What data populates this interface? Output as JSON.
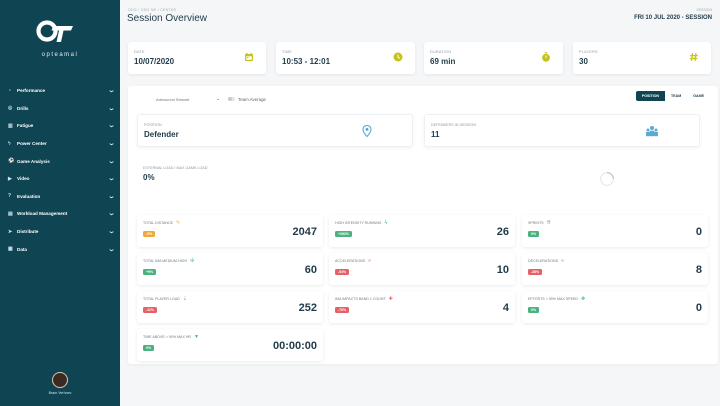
{
  "brand": {
    "logo_text": "opteamal"
  },
  "sidebar": {
    "items": [
      {
        "label": "Performance",
        "icon": "chart-icon",
        "glyph": "◔"
      },
      {
        "label": "Drills",
        "icon": "drills-icon",
        "glyph": "◎"
      },
      {
        "label": "Fatigue",
        "icon": "fatigue-icon",
        "glyph": "▥"
      },
      {
        "label": "Power Center",
        "icon": "power-icon",
        "glyph": "ϟ"
      },
      {
        "label": "Game Analysis",
        "icon": "football-icon",
        "glyph": "⚽"
      },
      {
        "label": "Video",
        "icon": "video-icon",
        "glyph": "▶"
      },
      {
        "label": "Evaluation",
        "icon": "question-icon",
        "glyph": "?"
      },
      {
        "label": "Workload Management",
        "icon": "workload-icon",
        "glyph": "▤"
      },
      {
        "label": "Distribute",
        "icon": "send-icon",
        "glyph": "➤"
      },
      {
        "label": "Data",
        "icon": "database-icon",
        "glyph": "▦"
      }
    ],
    "user": {
      "name": "Bram Verhoev"
    }
  },
  "header": {
    "breadcrumb": "ODG  /  ODG NE  /  CENTER",
    "title": "Session Overview",
    "session_label": "SESSION",
    "session_value": "FRI 10 JUL 2020 - SESSION"
  },
  "stats": [
    {
      "label": "DATE",
      "value": "10/07/2020",
      "icon": "calendar-icon"
    },
    {
      "label": "TIME",
      "value": "10:53 - 12:01",
      "icon": "clock-icon"
    },
    {
      "label": "DURATION",
      "value": "69 min",
      "icon": "stopwatch-icon"
    },
    {
      "label": "PLAYERS",
      "value": "30",
      "icon": "hash-icon"
    }
  ],
  "filters": {
    "athlete": "Adewunmi Stewart",
    "team_average": "Team Average",
    "tabs": [
      "POSITION",
      "TEAM",
      "GAME"
    ],
    "active_tab": "POSITION"
  },
  "position": {
    "label": "POSITION",
    "value": "Defender"
  },
  "defenders": {
    "label": "DEFENDERS IN SESSION",
    "value": "11"
  },
  "external_load": {
    "label": "EXTERNAL LOAD / MAX GAME LOAD",
    "value": "0%"
  },
  "colors": {
    "orange": "#f2a93b",
    "green": "#49b27e",
    "red": "#e85f66"
  },
  "metrics": [
    {
      "label": "TOTAL DISTANCE",
      "icon": "pencil-icon",
      "glyph": "✎",
      "icon_color": "#f2a93b",
      "badge": "-9%",
      "badge_color": "#f2a93b",
      "value": "2047"
    },
    {
      "label": "HIGH INTENSITY RUNNING",
      "icon": "bolt-icon",
      "glyph": "ϟ",
      "icon_color": "#49b27e",
      "badge": "+263%",
      "badge_color": "#49b27e",
      "value": "26"
    },
    {
      "label": "SPRINTS",
      "icon": "sprint-icon",
      "glyph": "⇈",
      "icon_color": "#49b27e",
      "badge": "0%",
      "badge_color": "#49b27e",
      "value": "0"
    },
    {
      "label": "TOTAL IMA MEDIUM-HIGH",
      "icon": "arrows-icon",
      "glyph": "✣",
      "icon_color": "#49b27e",
      "badge": "+9%",
      "badge_color": "#49b27e",
      "value": "60"
    },
    {
      "label": "ACCELERATIONS",
      "icon": "fast-forward-icon",
      "glyph": "»",
      "icon_color": "#e85f66",
      "badge": "-54%",
      "badge_color": "#e85f66",
      "value": "10"
    },
    {
      "label": "DECELERATIONS",
      "icon": "rewind-icon",
      "glyph": "«",
      "icon_color": "#e85f66",
      "badge": "-38%",
      "badge_color": "#e85f66",
      "value": "8"
    },
    {
      "label": "TOTAL PLAYER LOAD",
      "icon": "load-icon",
      "glyph": "⇣",
      "icon_color": "#e85f66",
      "badge": "-11%",
      "badge_color": "#e85f66",
      "value": "252"
    },
    {
      "label": "IMA IMPACTS BAND 1 COUNT",
      "icon": "impact-icon",
      "glyph": "✚",
      "icon_color": "#e85f66",
      "badge": "-70%",
      "badge_color": "#e85f66",
      "value": "4"
    },
    {
      "label": "EFFORTS > 90% MAX SPEED",
      "icon": "speed-icon",
      "glyph": "✥",
      "icon_color": "#49b27e",
      "badge": "0%",
      "badge_color": "#49b27e",
      "value": "0"
    },
    {
      "label": "TIME ABOVE > 90% MAX HR",
      "icon": "heart-rate-icon",
      "glyph": "▼",
      "icon_color": "#49b27e",
      "badge": "0%",
      "badge_color": "#49b27e",
      "value": "00:00:00"
    }
  ]
}
